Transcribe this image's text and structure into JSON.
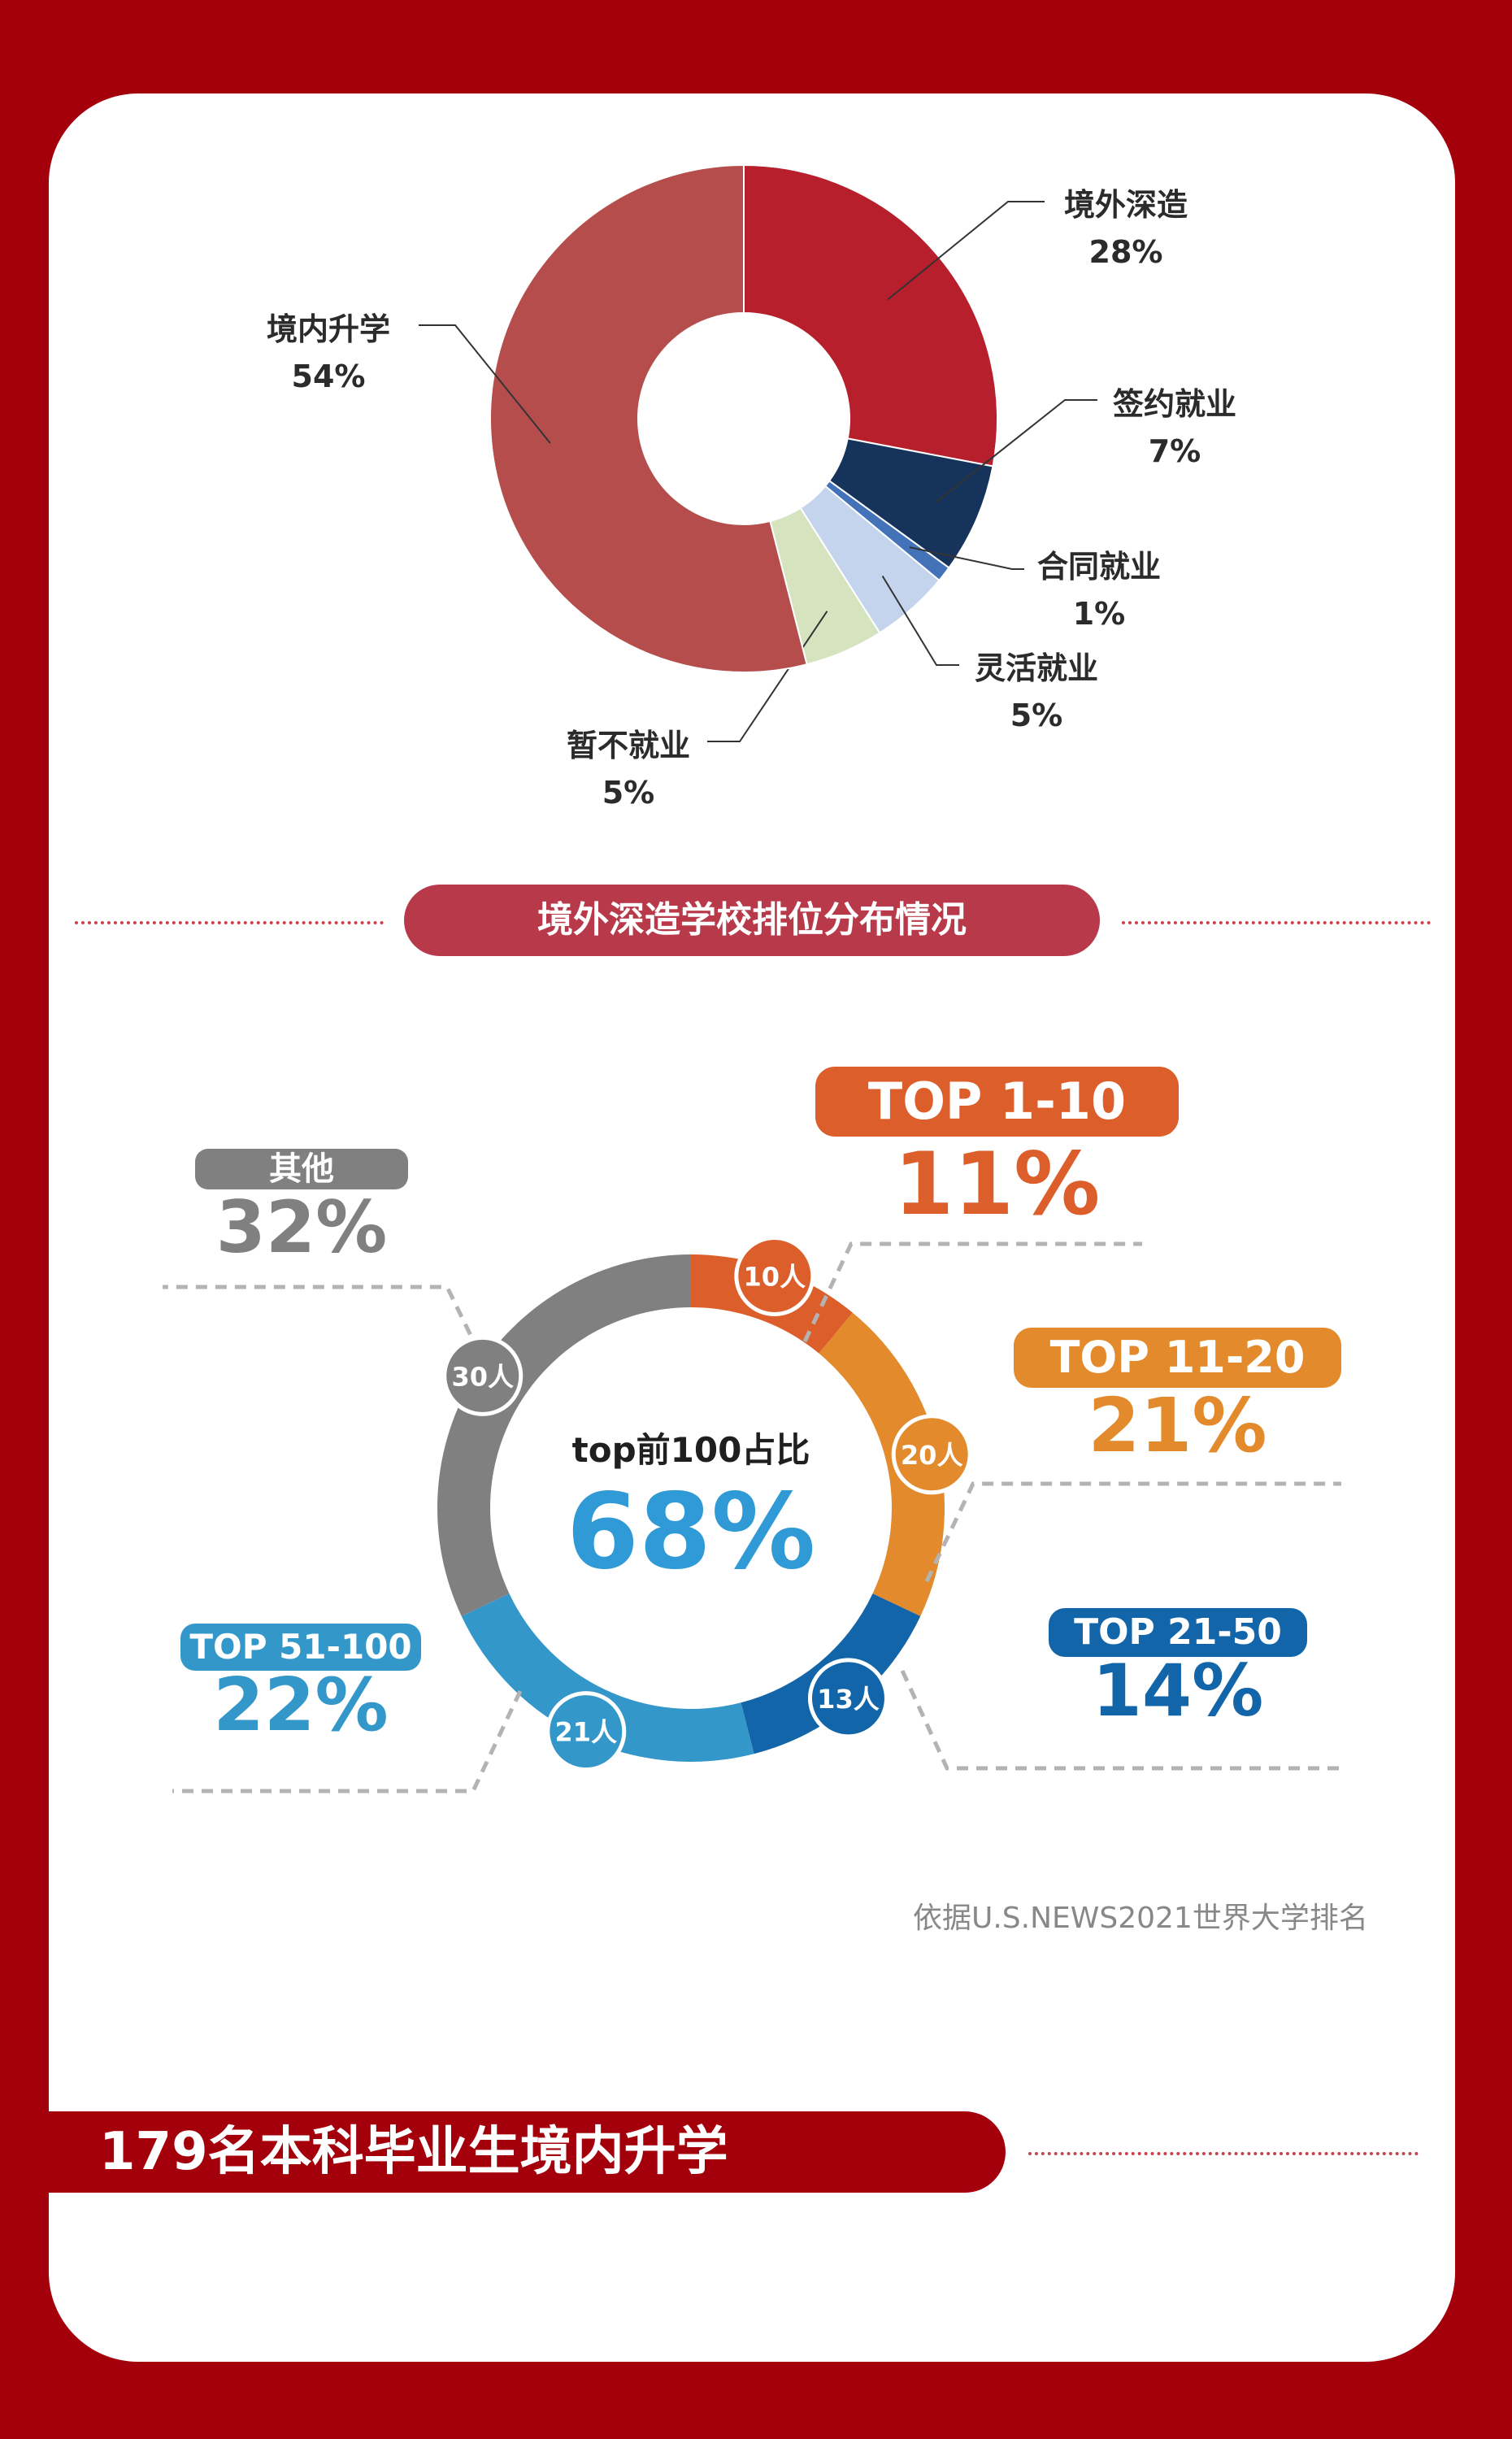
{
  "chart_data": [
    {
      "type": "pie",
      "style": "donut",
      "categories": [
        "境外深造",
        "签约就业",
        "合同就业",
        "灵活就业",
        "暂不就业",
        "境内升学"
      ],
      "values": [
        28,
        7,
        1,
        5,
        5,
        54
      ],
      "labels": [
        "28%",
        "7%",
        "1%",
        "5%",
        "5%",
        "54%"
      ],
      "colors": [
        "#b61f2b",
        "#16335c",
        "#4472b9",
        "#c4d4ed",
        "#d5e3bf",
        "#b54d4d"
      ]
    },
    {
      "type": "pie",
      "style": "donut",
      "title": "境外深造学校排位分布情况",
      "center_label": "top前100占比",
      "center_value": "68%",
      "categories": [
        "TOP  1-10",
        "TOP  11-20",
        "TOP  21-50",
        "TOP  51-100",
        "其他"
      ],
      "counts": [
        "10人",
        "20人",
        "13人",
        "21人",
        "30人"
      ],
      "values": [
        11,
        21,
        14,
        22,
        32
      ],
      "labels": [
        "11%",
        "21%",
        "14%",
        "22%",
        "32%"
      ],
      "colors": [
        "#dc5f2b",
        "#e38a2d",
        "#1165a8",
        "#3497c9",
        "#808081"
      ]
    }
  ],
  "source": "依据U.S.NEWS2021世界大学排名",
  "footer_title": "179名本科毕业生境内升学"
}
